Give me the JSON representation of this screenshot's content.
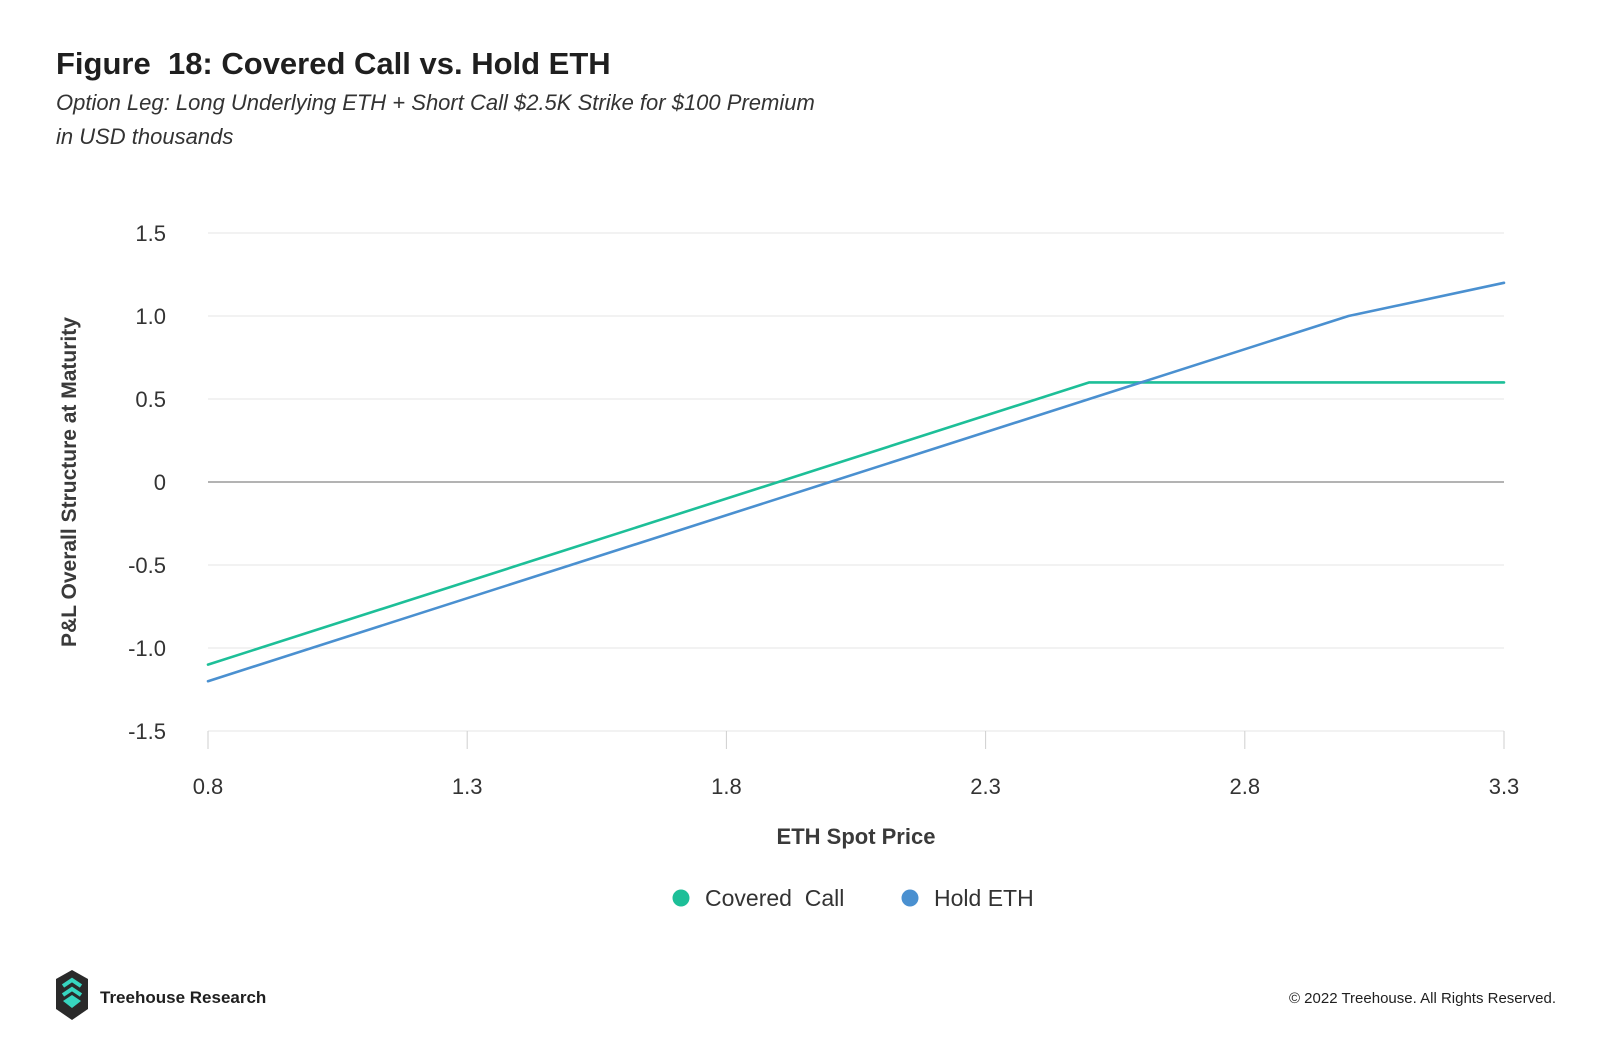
{
  "header": {
    "title": "Figure  18: Covered Call vs. Hold ETH",
    "subtitle_line1": "Option Leg: Long Underlying ETH + Short Call $2.5K Strike for $100 Premium",
    "subtitle_line2": "in USD thousands"
  },
  "footer": {
    "brand": "Treehouse Research",
    "copyright": "© 2022 Treehouse. All Rights Reserved."
  },
  "colors": {
    "covered_call": "#1dbf98",
    "hold_eth": "#4a90d0",
    "grid": "#e6e6e6",
    "zero_line": "#9a9a9a",
    "text": "#333333"
  },
  "chart_data": {
    "type": "line",
    "xlabel": "ETH Spot Price",
    "ylabel": "P&L Overall Structure at Maturity",
    "xlim": [
      0.8,
      3.3
    ],
    "ylim": [
      -1.5,
      1.5
    ],
    "x_ticks": [
      0.8,
      1.3,
      1.8,
      2.3,
      2.8,
      3.3
    ],
    "x_tick_labels": [
      "0.8",
      "1.3",
      "1.8",
      "2.3",
      "2.8",
      "3.3"
    ],
    "y_ticks": [
      1.5,
      1.0,
      0.5,
      0,
      -0.5,
      -1.0,
      -1.5
    ],
    "y_tick_labels": [
      "1.5",
      "1.0",
      "0.5",
      "0",
      "-0.5",
      "-1.0",
      "-1.5"
    ],
    "grid": "horizontal",
    "legend_position": "bottom-center",
    "series": [
      {
        "name": "Covered  Call",
        "color": "#1dbf98",
        "x": [
          0.8,
          1.0,
          1.5,
          2.0,
          2.5,
          2.575,
          3.0,
          3.3
        ],
        "y": [
          -1.1,
          -0.9,
          -0.4,
          0.1,
          0.6,
          0.6,
          0.6,
          0.6
        ]
      },
      {
        "name": "Hold ETH",
        "color": "#4a90d0",
        "x": [
          0.8,
          1.0,
          1.5,
          2.0,
          2.5,
          3.0,
          3.3
        ],
        "y": [
          -1.2,
          -1.0,
          -0.5,
          0.0,
          0.5,
          1.0,
          1.2
        ]
      }
    ]
  }
}
